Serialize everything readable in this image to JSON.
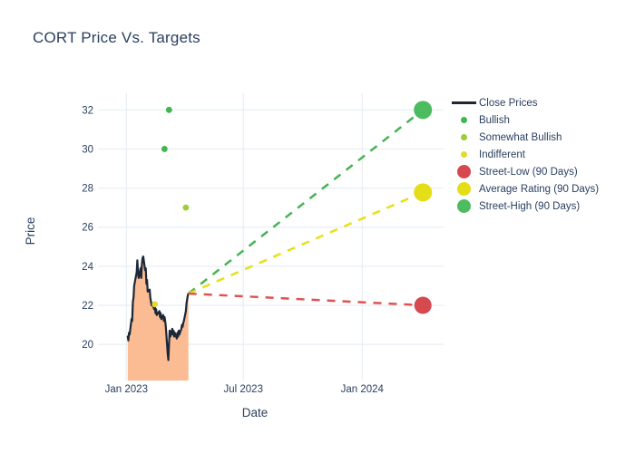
{
  "chart_data": {
    "type": "line",
    "title": "CORT Price Vs. Targets",
    "xlabel": "Date",
    "ylabel": "Price",
    "xlim": [
      "2022-11-18",
      "2024-05-06"
    ],
    "ylim": [
      18.15,
      32.85
    ],
    "grid": true,
    "yticks": [
      20,
      22,
      24,
      26,
      28,
      30,
      32
    ],
    "xticks": [
      {
        "date": "2023-01-01",
        "label": "Jan 2023"
      },
      {
        "date": "2023-07-01",
        "label": "Jul 2023"
      },
      {
        "date": "2024-01-01",
        "label": "Jan 2024"
      }
    ],
    "close_prices": {
      "name": "Close Prices",
      "line_color": "#1d2836",
      "fill_color": "#fbbb93",
      "dates": [
        "2023-01-03",
        "2023-01-04",
        "2023-01-05",
        "2023-01-06",
        "2023-01-09",
        "2023-01-10",
        "2023-01-11",
        "2023-01-12",
        "2023-01-13",
        "2023-01-17",
        "2023-01-18",
        "2023-01-19",
        "2023-01-20",
        "2023-01-23",
        "2023-01-24",
        "2023-01-25",
        "2023-01-26",
        "2023-01-27",
        "2023-01-30",
        "2023-01-31",
        "2023-02-01",
        "2023-02-02",
        "2023-02-03",
        "2023-02-06",
        "2023-02-07",
        "2023-02-08",
        "2023-02-09",
        "2023-02-10",
        "2023-02-13",
        "2023-02-14",
        "2023-02-15",
        "2023-02-16",
        "2023-02-17",
        "2023-02-21",
        "2023-02-22",
        "2023-02-23",
        "2023-02-24",
        "2023-02-27",
        "2023-02-28",
        "2023-03-01",
        "2023-03-02",
        "2023-03-03",
        "2023-03-06",
        "2023-03-07",
        "2023-03-08",
        "2023-03-09",
        "2023-03-10",
        "2023-03-13",
        "2023-03-14",
        "2023-03-15",
        "2023-03-16",
        "2023-03-17",
        "2023-03-20",
        "2023-03-21",
        "2023-03-22",
        "2023-03-23",
        "2023-03-24",
        "2023-03-27",
        "2023-03-28",
        "2023-03-29",
        "2023-03-30",
        "2023-03-31",
        "2023-04-03",
        "2023-04-04",
        "2023-04-05",
        "2023-04-06",
        "2023-04-07"
      ],
      "values": [
        20.4,
        20.2,
        20.6,
        20.5,
        21.3,
        21.2,
        22.2,
        22.4,
        23.0,
        23.7,
        24.3,
        23.6,
        23.4,
        23.9,
        23.4,
        24.1,
        24.4,
        24.5,
        23.8,
        23.9,
        23.1,
        23.3,
        22.7,
        22.8,
        22.4,
        22.2,
        22.0,
        22.1,
        21.8,
        22.0,
        21.6,
        21.8,
        21.5,
        21.7,
        21.4,
        21.6,
        21.3,
        21.5,
        21.2,
        21.4,
        21.2,
        20.9,
        19.5,
        19.2,
        20.0,
        20.7,
        20.4,
        20.8,
        20.5,
        20.7,
        20.4,
        20.6,
        20.3,
        20.6,
        20.4,
        20.7,
        20.5,
        20.8,
        21.0,
        20.9,
        21.1,
        21.2,
        21.7,
        22.1,
        22.3,
        22.5,
        22.6
      ]
    },
    "ratings": [
      {
        "name": "Bullish",
        "color": "#3fb650",
        "radius": 3.4,
        "points": [
          {
            "date": "2023-03-08",
            "price": 32.0
          },
          {
            "date": "2023-03-01",
            "price": 30.0
          }
        ]
      },
      {
        "name": "Somewhat Bullish",
        "color": "#9dcc3a",
        "radius": 3.4,
        "points": [
          {
            "date": "2023-04-03",
            "price": 27.0
          }
        ]
      },
      {
        "name": "Indifferent",
        "color": "#e3da2e",
        "radius": 3.4,
        "points": [
          {
            "date": "2023-02-14",
            "price": 22.05
          }
        ]
      }
    ],
    "targets": [
      {
        "name": "Street-High (90 Days)",
        "line_color": "#47b354",
        "marker_color": "#4dbb5f",
        "start": {
          "date": "2023-04-07",
          "price": 22.6
        },
        "end": {
          "date": "2024-04-04",
          "price": 32.0
        },
        "marker_radius": 10
      },
      {
        "name": "Average Rating (90 Days)",
        "line_color": "#e6e01a",
        "marker_color": "#e3de17",
        "start": {
          "date": "2023-04-07",
          "price": 22.6
        },
        "end": {
          "date": "2024-04-04",
          "price": 27.78
        },
        "marker_radius": 10
      },
      {
        "name": "Street-Low (90 Days)",
        "line_color": "#df5253",
        "marker_color": "#d5494f",
        "start": {
          "date": "2023-04-07",
          "price": 22.6
        },
        "end": {
          "date": "2024-04-04",
          "price": 22.0
        },
        "marker_radius": 9.5
      }
    ]
  },
  "legend": {
    "items": [
      {
        "label": "Close Prices",
        "swatch": "line",
        "color": "#1d2836"
      },
      {
        "label": "Bullish",
        "swatch": "dot",
        "color": "#3fb650"
      },
      {
        "label": "Somewhat Bullish",
        "swatch": "dot",
        "color": "#9dcc3a"
      },
      {
        "label": "Indifferent",
        "swatch": "dot",
        "color": "#e3da2e"
      },
      {
        "label": "Street-Low (90 Days)",
        "swatch": "big",
        "color": "#d5494f"
      },
      {
        "label": "Average Rating (90 Days)",
        "swatch": "big",
        "color": "#e3de17"
      },
      {
        "label": "Street-High (90 Days)",
        "swatch": "big",
        "color": "#4dbb5f"
      }
    ]
  },
  "colors": {
    "background": "#ffffff",
    "grid": "#e8eef4",
    "text": "#2a3f5f"
  }
}
